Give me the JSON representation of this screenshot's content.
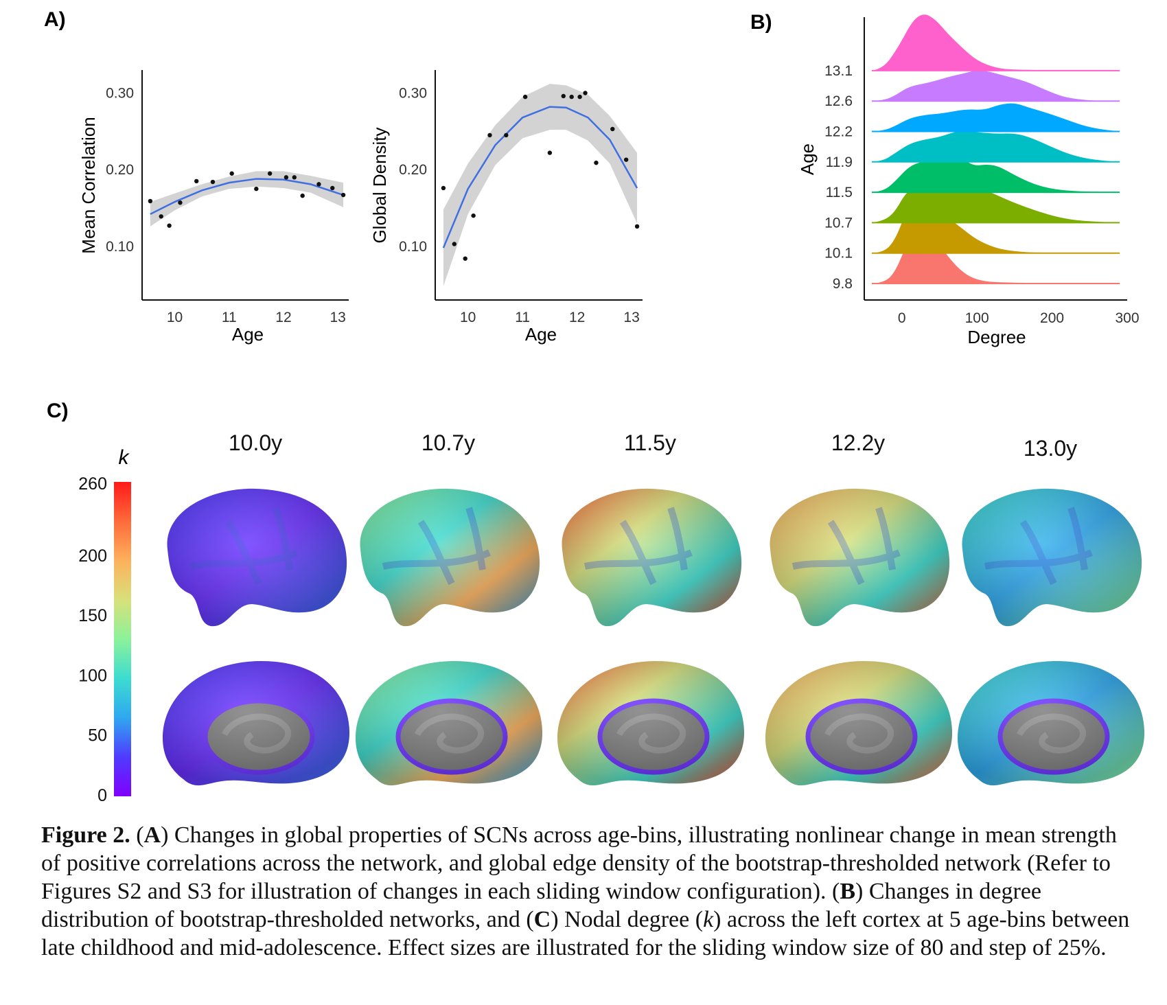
{
  "panels": {
    "a": "A)",
    "b": "B)",
    "c": "C)"
  },
  "chart_data": [
    {
      "id": "mean-correlation",
      "type": "scatter",
      "xlabel": "Age",
      "ylabel": "Mean Correlation",
      "xlim": [
        9.4,
        13.2
      ],
      "ylim": [
        0.03,
        0.33
      ],
      "xticks": [
        "10",
        "11",
        "12",
        "13"
      ],
      "yticks": [
        "0.10",
        "0.20",
        "0.30"
      ],
      "points": [
        [
          9.55,
          0.159
        ],
        [
          9.75,
          0.139
        ],
        [
          9.9,
          0.127
        ],
        [
          10.1,
          0.157
        ],
        [
          10.4,
          0.185
        ],
        [
          10.7,
          0.184
        ],
        [
          11.05,
          0.195
        ],
        [
          11.5,
          0.175
        ],
        [
          11.75,
          0.195
        ],
        [
          12.05,
          0.19
        ],
        [
          12.2,
          0.19
        ],
        [
          12.35,
          0.166
        ],
        [
          12.65,
          0.181
        ],
        [
          12.9,
          0.176
        ],
        [
          13.1,
          0.167
        ]
      ],
      "fit": [
        [
          9.55,
          0.142
        ],
        [
          10.0,
          0.158
        ],
        [
          10.5,
          0.173
        ],
        [
          11.0,
          0.183
        ],
        [
          11.5,
          0.188
        ],
        [
          12.0,
          0.187
        ],
        [
          12.5,
          0.181
        ],
        [
          13.1,
          0.167
        ]
      ],
      "ci_upper": [
        [
          9.55,
          0.158
        ],
        [
          10.0,
          0.169
        ],
        [
          10.5,
          0.181
        ],
        [
          11.0,
          0.191
        ],
        [
          11.5,
          0.198
        ],
        [
          12.0,
          0.198
        ],
        [
          12.5,
          0.192
        ],
        [
          13.1,
          0.183
        ]
      ],
      "ci_lower": [
        [
          9.55,
          0.126
        ],
        [
          10.0,
          0.147
        ],
        [
          10.5,
          0.165
        ],
        [
          11.0,
          0.175
        ],
        [
          11.5,
          0.178
        ],
        [
          12.0,
          0.176
        ],
        [
          12.5,
          0.17
        ],
        [
          13.1,
          0.151
        ]
      ],
      "colors": {
        "fit": "#3f6fe0",
        "ci": "#d3d3d3",
        "points": "#111111"
      }
    },
    {
      "id": "global-density",
      "type": "scatter",
      "xlabel": "Age",
      "ylabel": "Global Density",
      "xlim": [
        9.4,
        13.2
      ],
      "ylim": [
        0.03,
        0.33
      ],
      "xticks": [
        "10",
        "11",
        "12",
        "13"
      ],
      "yticks": [
        "0.10",
        "0.20",
        "0.30"
      ],
      "points": [
        [
          9.55,
          0.176
        ],
        [
          9.75,
          0.103
        ],
        [
          9.95,
          0.084
        ],
        [
          10.1,
          0.14
        ],
        [
          10.4,
          0.245
        ],
        [
          10.7,
          0.245
        ],
        [
          11.05,
          0.295
        ],
        [
          11.5,
          0.222
        ],
        [
          11.75,
          0.296
        ],
        [
          11.9,
          0.295
        ],
        [
          12.05,
          0.295
        ],
        [
          12.15,
          0.3
        ],
        [
          12.35,
          0.209
        ],
        [
          12.65,
          0.253
        ],
        [
          12.9,
          0.213
        ],
        [
          13.1,
          0.126
        ]
      ],
      "fit": [
        [
          9.55,
          0.098
        ],
        [
          10.0,
          0.175
        ],
        [
          10.5,
          0.232
        ],
        [
          11.0,
          0.268
        ],
        [
          11.5,
          0.282
        ],
        [
          11.8,
          0.281
        ],
        [
          12.2,
          0.268
        ],
        [
          12.6,
          0.239
        ],
        [
          13.1,
          0.176
        ]
      ],
      "ci_upper": [
        [
          9.55,
          0.148
        ],
        [
          10.0,
          0.208
        ],
        [
          10.5,
          0.258
        ],
        [
          11.0,
          0.295
        ],
        [
          11.5,
          0.312
        ],
        [
          11.8,
          0.31
        ],
        [
          12.2,
          0.298
        ],
        [
          12.6,
          0.27
        ],
        [
          13.1,
          0.222
        ]
      ],
      "ci_lower": [
        [
          9.55,
          0.048
        ],
        [
          10.0,
          0.142
        ],
        [
          10.5,
          0.206
        ],
        [
          11.0,
          0.241
        ],
        [
          11.5,
          0.252
        ],
        [
          11.8,
          0.252
        ],
        [
          12.2,
          0.238
        ],
        [
          12.6,
          0.208
        ],
        [
          13.1,
          0.13
        ]
      ],
      "colors": {
        "fit": "#3f6fe0",
        "ci": "#d3d3d3",
        "points": "#111111"
      }
    },
    {
      "id": "degree-ridgeline",
      "type": "area",
      "xlabel": "Degree",
      "ylabel": "Age",
      "xlim": [
        -50,
        300
      ],
      "xticks": [
        "0",
        "100",
        "200",
        "300"
      ],
      "x_range": [
        -40,
        290
      ],
      "series": [
        {
          "name": "9.8",
          "color": "#f8766d",
          "values": [
            [
              -40,
              0
            ],
            [
              -25,
              0.02
            ],
            [
              -10,
              0.3
            ],
            [
              5,
              1.1
            ],
            [
              15,
              1.55
            ],
            [
              28,
              1.7
            ],
            [
              42,
              1.45
            ],
            [
              60,
              0.85
            ],
            [
              80,
              0.35
            ],
            [
              100,
              0.1
            ],
            [
              130,
              0.02
            ],
            [
              290,
              0
            ]
          ]
        },
        {
          "name": "10.1",
          "color": "#c49a00",
          "values": [
            [
              -40,
              0
            ],
            [
              -25,
              0.02
            ],
            [
              -10,
              0.35
            ],
            [
              5,
              1.2
            ],
            [
              15,
              1.5
            ],
            [
              30,
              1.45
            ],
            [
              45,
              1.3
            ],
            [
              60,
              1.1
            ],
            [
              80,
              0.75
            ],
            [
              100,
              0.4
            ],
            [
              125,
              0.15
            ],
            [
              150,
              0.05
            ],
            [
              180,
              0.01
            ],
            [
              290,
              0
            ]
          ]
        },
        {
          "name": "10.7",
          "color": "#7cae00",
          "values": [
            [
              -40,
              0
            ],
            [
              -25,
              0.05
            ],
            [
              -10,
              0.3
            ],
            [
              5,
              0.9
            ],
            [
              20,
              1.15
            ],
            [
              40,
              1.25
            ],
            [
              65,
              1.28
            ],
            [
              85,
              1.15
            ],
            [
              105,
              1.05
            ],
            [
              125,
              0.85
            ],
            [
              150,
              0.6
            ],
            [
              180,
              0.35
            ],
            [
              210,
              0.15
            ],
            [
              240,
              0.05
            ],
            [
              290,
              0
            ]
          ]
        },
        {
          "name": "11.5",
          "color": "#00be67",
          "values": [
            [
              -40,
              0
            ],
            [
              -25,
              0.03
            ],
            [
              -10,
              0.3
            ],
            [
              10,
              0.8
            ],
            [
              30,
              0.95
            ],
            [
              50,
              1.15
            ],
            [
              65,
              1.2
            ],
            [
              80,
              1.05
            ],
            [
              95,
              0.8
            ],
            [
              115,
              0.85
            ],
            [
              130,
              0.78
            ],
            [
              150,
              0.52
            ],
            [
              175,
              0.25
            ],
            [
              200,
              0.1
            ],
            [
              230,
              0.03
            ],
            [
              290,
              0
            ]
          ]
        },
        {
          "name": "11.9",
          "color": "#00bfc4",
          "values": [
            [
              -40,
              0
            ],
            [
              -25,
              0.03
            ],
            [
              -10,
              0.25
            ],
            [
              10,
              0.55
            ],
            [
              30,
              0.68
            ],
            [
              50,
              0.75
            ],
            [
              75,
              0.95
            ],
            [
              100,
              0.9
            ],
            [
              125,
              0.85
            ],
            [
              150,
              0.87
            ],
            [
              170,
              0.75
            ],
            [
              195,
              0.5
            ],
            [
              220,
              0.25
            ],
            [
              245,
              0.1
            ],
            [
              270,
              0.03
            ],
            [
              290,
              0
            ]
          ]
        },
        {
          "name": "12.2",
          "color": "#00a9ff",
          "values": [
            [
              -40,
              0
            ],
            [
              -25,
              0.02
            ],
            [
              -10,
              0.15
            ],
            [
              10,
              0.4
            ],
            [
              30,
              0.5
            ],
            [
              55,
              0.55
            ],
            [
              85,
              0.68
            ],
            [
              110,
              0.65
            ],
            [
              130,
              0.82
            ],
            [
              150,
              0.87
            ],
            [
              170,
              0.72
            ],
            [
              195,
              0.55
            ],
            [
              220,
              0.35
            ],
            [
              245,
              0.15
            ],
            [
              270,
              0.05
            ],
            [
              290,
              0
            ]
          ]
        },
        {
          "name": "12.6",
          "color": "#c77cff",
          "values": [
            [
              -40,
              0
            ],
            [
              -25,
              0.02
            ],
            [
              -10,
              0.15
            ],
            [
              10,
              0.45
            ],
            [
              35,
              0.55
            ],
            [
              65,
              0.75
            ],
            [
              85,
              0.85
            ],
            [
              100,
              0.95
            ],
            [
              115,
              0.9
            ],
            [
              140,
              0.75
            ],
            [
              165,
              0.6
            ],
            [
              190,
              0.35
            ],
            [
              215,
              0.12
            ],
            [
              240,
              0.04
            ],
            [
              260,
              0.01
            ],
            [
              290,
              0
            ]
          ]
        },
        {
          "name": "13.1",
          "color": "#ff61cc",
          "values": [
            [
              -40,
              0
            ],
            [
              -25,
              0.05
            ],
            [
              -5,
              0.7
            ],
            [
              15,
              1.55
            ],
            [
              30,
              1.75
            ],
            [
              45,
              1.55
            ],
            [
              60,
              1.15
            ],
            [
              80,
              0.7
            ],
            [
              100,
              0.3
            ],
            [
              125,
              0.08
            ],
            [
              150,
              0.02
            ],
            [
              290,
              0
            ]
          ]
        }
      ],
      "yticks": [
        "9.8",
        "10.1",
        "10.7",
        "11.5",
        "11.9",
        "12.2",
        "12.6",
        "13.1"
      ]
    },
    {
      "id": "nodal-degree-colorbar",
      "type": "heatmap",
      "title": "k",
      "ticks": [
        "260",
        "200",
        "150",
        "100",
        "50",
        "0"
      ],
      "range": [
        0,
        260
      ],
      "age_labels": [
        "10.0y",
        "10.7y",
        "11.5y",
        "12.2y",
        "13.0y"
      ],
      "mean_k": [
        45,
        120,
        160,
        165,
        115
      ],
      "gradient": [
        "#7f00ff",
        "#4f3bff",
        "#2fa8f0",
        "#3ddcd0",
        "#8cf29a",
        "#d8e07a",
        "#fdb15c",
        "#ff6a3a",
        "#ff1a1a"
      ]
    }
  ],
  "caption": {
    "label": "Figure 2.",
    "A_open": "(",
    "A_letter": "A",
    "A_text": ") Changes in global properties of SCNs across age-bins, illustrating nonlinear change in mean strength of positive correlations across the network, and global edge density of the bootstrap-thresholded network (Refer to Figures S2 and S3 for illustration of changes in each sliding window configuration). (",
    "B_letter": "B",
    "B_text": ") Changes in degree distribution of bootstrap-thresholded networks, and (",
    "C_letter": "C",
    "C_text": ") Nodal degree (",
    "k_letter": "k",
    "C_text2": ") across the left cortex at 5 age-bins between late childhood and mid-adolescence. Effect sizes are illustrated for the sliding window size of 80 and step of 25%."
  }
}
